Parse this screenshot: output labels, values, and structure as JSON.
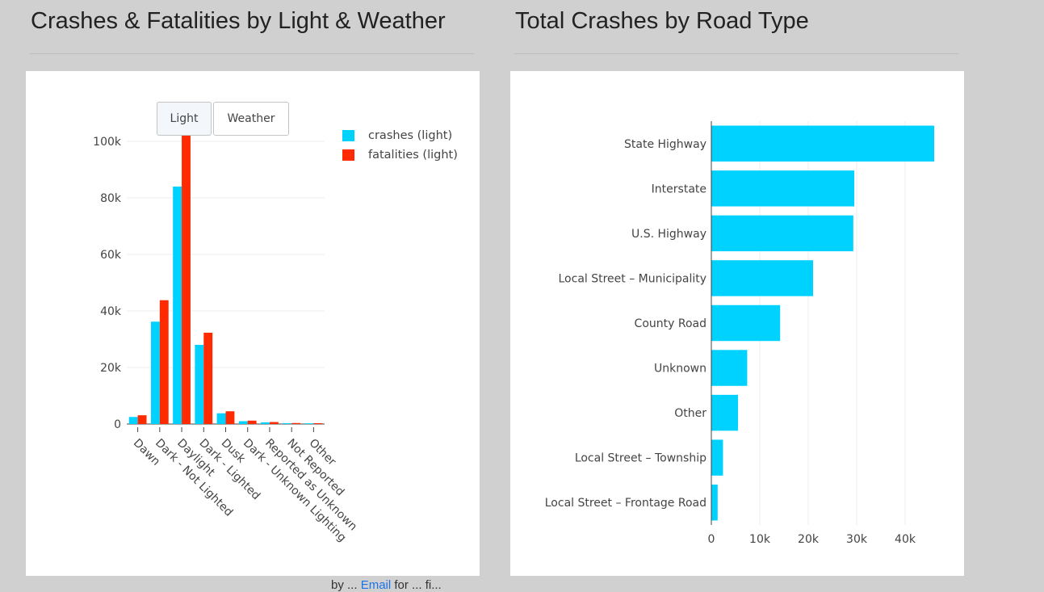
{
  "titles": {
    "left": "Crashes & Fatalities by Light & Weather",
    "right": "Total Crashes by Road Type"
  },
  "controls": {
    "light_label": "Light",
    "weather_label": "Weather",
    "active": "light"
  },
  "legend": [
    {
      "label": "crashes (light)",
      "color": "#00d2ff"
    },
    {
      "label": "fatalities (light)",
      "color": "#ff2a00"
    }
  ],
  "footer": {
    "prefix": "by ... ",
    "link": "Email",
    "suffix": " for ... fi..."
  },
  "chart_data": [
    {
      "type": "bar",
      "title": "Crashes & Fatalities by Light & Weather",
      "categories": [
        "Dawn",
        "Dark - Not Lighted",
        "Daylight",
        "Dark - Lighted",
        "Dusk",
        "Dark - Unknown Lighting",
        "Reported as Unknown",
        "Not Reported",
        "Other"
      ],
      "series": [
        {
          "name": "crashes (light)",
          "color": "#00d2ff",
          "values": [
            2500,
            36200,
            84000,
            28000,
            3800,
            1000,
            600,
            300,
            250
          ]
        },
        {
          "name": "fatalities (light)",
          "color": "#ff2a00",
          "values": [
            3100,
            43800,
            102000,
            32300,
            4500,
            1200,
            700,
            350,
            300
          ]
        }
      ],
      "ylim": [
        0,
        102000
      ],
      "yticks": [
        0,
        20000,
        40000,
        60000,
        80000,
        100000
      ],
      "ytick_labels": [
        "0",
        "20k",
        "40k",
        "60k",
        "80k",
        "100k"
      ],
      "xlabel": "",
      "ylabel": "",
      "legend_position": "top-right",
      "grid": true
    },
    {
      "type": "bar",
      "orientation": "horizontal",
      "title": "Total Crashes by Road Type",
      "categories": [
        "State Highway",
        "Interstate",
        "U.S. Highway",
        "Local Street – Municipality",
        "County Road",
        "Unknown",
        "Other",
        "Local Street – Township",
        "Local Street – Frontage Road"
      ],
      "values": [
        46000,
        29500,
        29300,
        21000,
        14200,
        7400,
        5500,
        2400,
        1300
      ],
      "color": "#00d2ff",
      "xlim": [
        0,
        48500
      ],
      "xticks": [
        0,
        10000,
        20000,
        30000,
        40000
      ],
      "xtick_labels": [
        "0",
        "10k",
        "20k",
        "30k",
        "40k"
      ],
      "xlabel": "",
      "ylabel": "",
      "grid": true
    }
  ]
}
